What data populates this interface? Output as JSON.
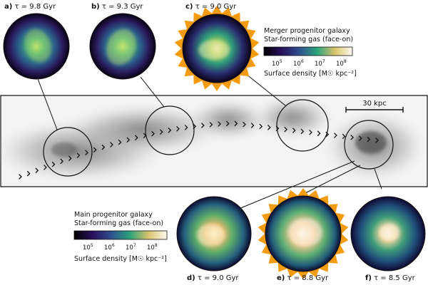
{
  "panels": [
    {
      "id": "a",
      "letter": "a)",
      "label": "τ = 9.8 Gyr"
    },
    {
      "id": "b",
      "letter": "b)",
      "label": "τ = 9.3 Gyr"
    },
    {
      "id": "c",
      "letter": "c)",
      "label": "τ = 9.0 Gyr"
    },
    {
      "id": "d",
      "letter": "d)",
      "label": "τ = 9.0 Gyr"
    },
    {
      "id": "e",
      "letter": "e)",
      "label": "τ = 8.8 Gyr"
    },
    {
      "id": "f",
      "letter": "f)",
      "label": "τ = 8.5 Gyr"
    }
  ],
  "legend_merger": {
    "line1": "Merger progenitor galaxy",
    "line2": "Star-forming gas (face-on)",
    "ticks": [
      "10",
      "10",
      "10",
      "10"
    ],
    "exponents": [
      "5",
      "6",
      "7",
      "8"
    ],
    "label": "Surface density [M☉ kpc⁻²]"
  },
  "legend_main": {
    "line1": "Main progenitor galaxy",
    "line2": "Star-forming gas (face-on)",
    "ticks": [
      "10",
      "10",
      "10",
      "10"
    ],
    "exponents": [
      "5",
      "6",
      "7",
      "8"
    ],
    "label": "Surface density [M☉ kpc⁻²]"
  },
  "scale_bar": {
    "label": "30 kpc"
  },
  "colors": {
    "star_border": "#f39c12",
    "cmap_dark": "#1b0a3a",
    "cmap_mid": "#2aa37a",
    "cmap_light": "#fff3d6"
  }
}
